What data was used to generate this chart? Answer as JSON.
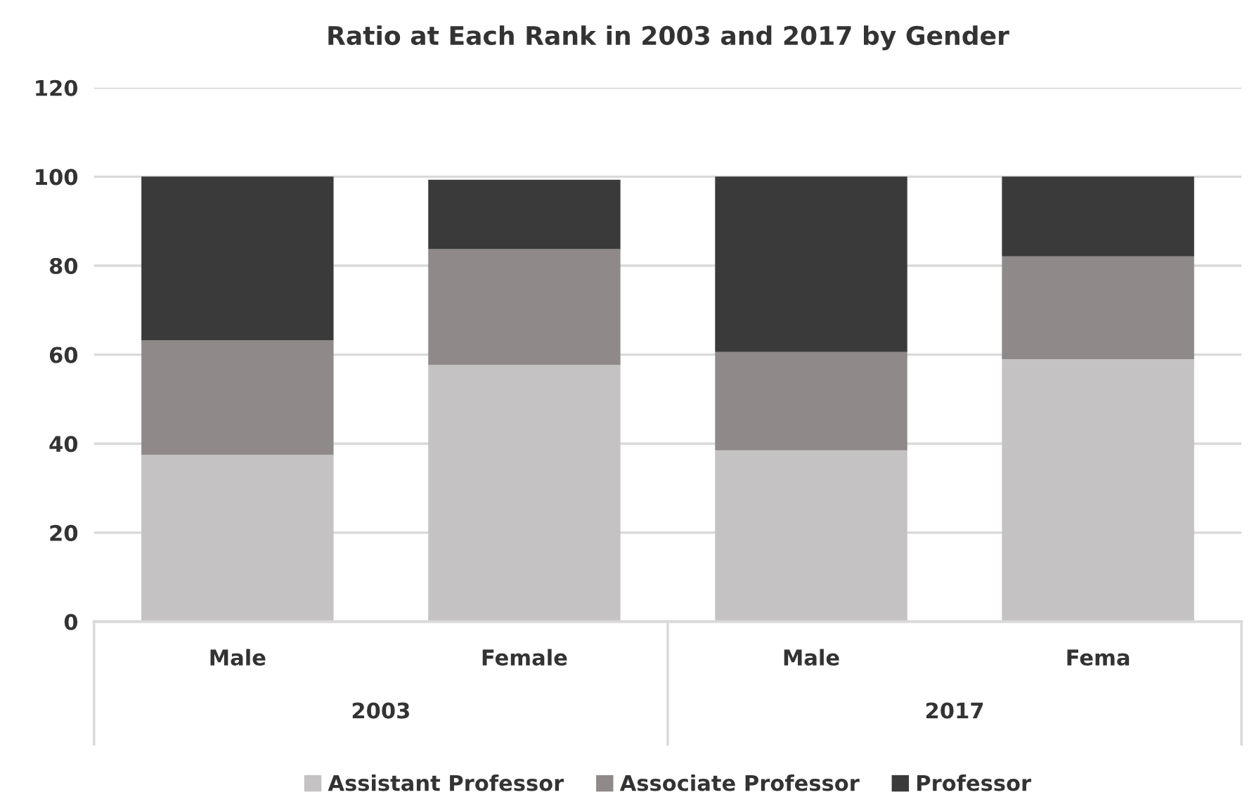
{
  "chart_data": {
    "type": "bar",
    "title": "Ratio at Each Rank in 2003 and 2017 by Gender",
    "categories": [
      "Male",
      "Female",
      "Male",
      "Fema"
    ],
    "series": [
      {
        "name": "Assistant Professor",
        "color": "#c4c2c2",
        "values": [
          37.5,
          57.7,
          38.5,
          59.0
        ]
      },
      {
        "name": "Associate Professor",
        "color": "#8f8a89",
        "values": [
          25.7,
          26.0,
          22.1,
          23.1
        ]
      },
      {
        "name": "Professor",
        "color": "#3a3a3a",
        "values": [
          36.8,
          15.6,
          39.4,
          17.9
        ]
      }
    ],
    "stacked": true,
    "ylim": [
      0,
      120
    ],
    "yticks": [
      0,
      20,
      40,
      60,
      80,
      100,
      120
    ],
    "grid": "y",
    "legend": "bottom",
    "annotations": [
      "2003",
      "2017"
    ]
  }
}
